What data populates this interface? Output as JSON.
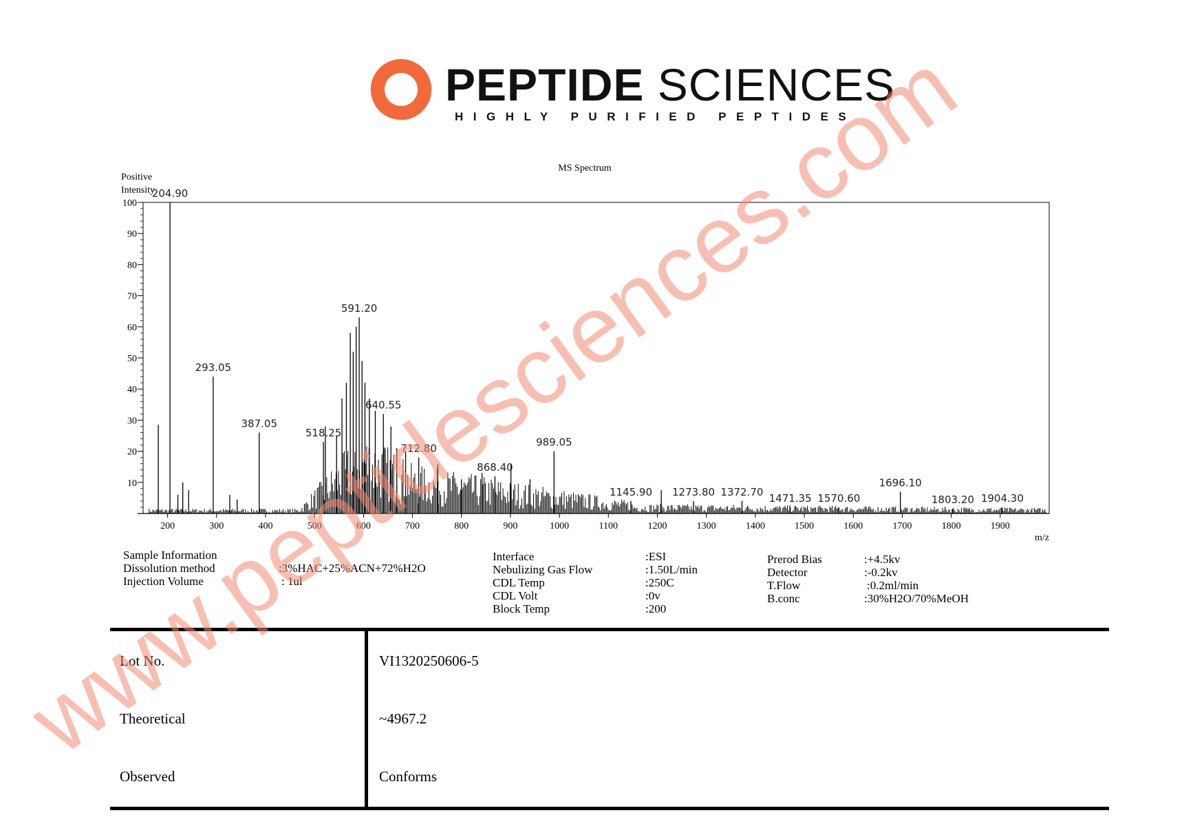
{
  "brand": {
    "name_bold": "PEPTIDE",
    "name_light": "SCIENCES",
    "tagline": "HIGHLY PURIFIED PEPTIDES",
    "logo_color": "#f26a3b",
    "icon": "swirl-logo-icon"
  },
  "chart_data": {
    "type": "bar",
    "title": "MS Spectrum",
    "ylabel": "Positive Intensity",
    "xlabel": "m/z",
    "xlim": [
      150,
      2000
    ],
    "ylim": [
      0,
      100
    ],
    "x_ticks": [
      200,
      300,
      400,
      500,
      600,
      700,
      800,
      900,
      1000,
      1100,
      1200,
      1300,
      1400,
      1500,
      1600,
      1700,
      1800,
      1900
    ],
    "y_ticks": [
      10,
      20,
      30,
      40,
      50,
      60,
      70,
      80,
      90,
      100
    ],
    "peaks": [
      {
        "x": 181,
        "y": 28.5
      },
      {
        "x": 204.9,
        "y": 100,
        "label": "204.90"
      },
      {
        "x": 221,
        "y": 6
      },
      {
        "x": 231,
        "y": 10
      },
      {
        "x": 243,
        "y": 7.5
      },
      {
        "x": 293.05,
        "y": 44,
        "label": "293.05"
      },
      {
        "x": 327,
        "y": 6
      },
      {
        "x": 342,
        "y": 4.5
      },
      {
        "x": 387.05,
        "y": 26,
        "label": "387.05"
      },
      {
        "x": 518.25,
        "y": 23,
        "label": "518.25"
      },
      {
        "x": 522,
        "y": 28
      },
      {
        "x": 545,
        "y": 25
      },
      {
        "x": 556,
        "y": 37
      },
      {
        "x": 565,
        "y": 42
      },
      {
        "x": 573,
        "y": 58
      },
      {
        "x": 579,
        "y": 52
      },
      {
        "x": 585,
        "y": 60
      },
      {
        "x": 591.2,
        "y": 63,
        "label": "591.20"
      },
      {
        "x": 597,
        "y": 49
      },
      {
        "x": 603,
        "y": 42
      },
      {
        "x": 612,
        "y": 37
      },
      {
        "x": 624,
        "y": 33
      },
      {
        "x": 640.55,
        "y": 32,
        "label": "640.55"
      },
      {
        "x": 656,
        "y": 28
      },
      {
        "x": 668,
        "y": 21
      },
      {
        "x": 686,
        "y": 20
      },
      {
        "x": 712.8,
        "y": 18,
        "label": "712.80"
      },
      {
        "x": 752,
        "y": 16
      },
      {
        "x": 800,
        "y": 11
      },
      {
        "x": 842,
        "y": 13
      },
      {
        "x": 868.4,
        "y": 12,
        "label": "868.40"
      },
      {
        "x": 901,
        "y": 16
      },
      {
        "x": 940,
        "y": 11
      },
      {
        "x": 989.05,
        "y": 20,
        "label": "989.05"
      },
      {
        "x": 1145.9,
        "y": 4,
        "label": "1145.90"
      },
      {
        "x": 1208,
        "y": 7.5
      },
      {
        "x": 1273.8,
        "y": 4,
        "label": "1273.80"
      },
      {
        "x": 1372.7,
        "y": 4,
        "label": "1372.70"
      },
      {
        "x": 1471.35,
        "y": 2,
        "label": "1471.35"
      },
      {
        "x": 1570.6,
        "y": 2,
        "label": "1570.60"
      },
      {
        "x": 1696.1,
        "y": 7,
        "label": "1696.10"
      },
      {
        "x": 1803.2,
        "y": 1.5,
        "label": "1803.20"
      },
      {
        "x": 1904.3,
        "y": 2,
        "label": "1904.30"
      }
    ]
  },
  "sample_info": {
    "heading": "Sample Information",
    "rows": [
      {
        "label": "Dissolution method",
        "value": ":3%HAC+25%ACN+72%H2O"
      },
      {
        "label": "Injection Volume",
        "value": ": 1ul"
      }
    ]
  },
  "interface_info": {
    "rows": [
      {
        "label": "Interface",
        "value": ":ESI"
      },
      {
        "label": "Nebulizing Gas Flow",
        "value": ":1.50L/min"
      },
      {
        "label": "CDL Temp",
        "value": ":250C"
      },
      {
        "label": "CDL Volt",
        "value": ":0v"
      },
      {
        "label": "Block Temp",
        "value": ":200"
      }
    ]
  },
  "detector_info": {
    "rows": [
      {
        "label": "Prerod Bias",
        "value": ":+4.5kv"
      },
      {
        "label": "Detector",
        "value": ":-0.2kv"
      },
      {
        "label": "T.Flow",
        "value": ":0.2ml/min"
      },
      {
        "label": "B.conc",
        "value": ":30%H2O/70%MeOH"
      }
    ]
  },
  "results_table": {
    "rows": [
      {
        "label": "Lot No.",
        "value": "VI1320250606-5"
      },
      {
        "label": "Theoretical",
        "value": "~4967.2"
      },
      {
        "label": "Observed",
        "value": "Conforms"
      }
    ]
  },
  "watermark": {
    "text": "www.peptidesciences.com",
    "color": "#f08a72"
  }
}
